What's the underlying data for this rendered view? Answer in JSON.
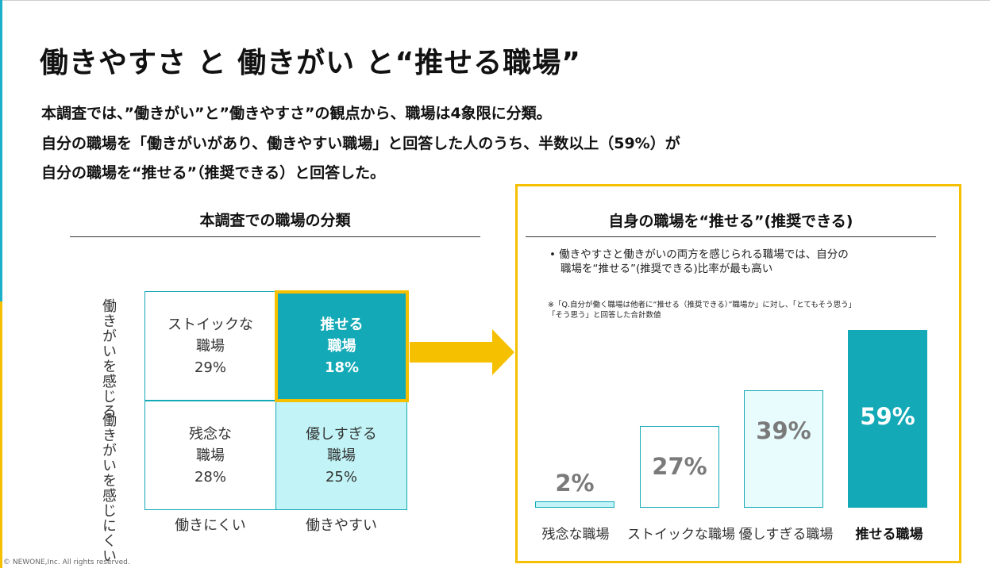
{
  "title": "働きやすさ と 働きがい と“推せる職場”",
  "lead": [
    "本調査では、”働きがい”と”働きやすさ”の観点から、職場は4象限に分類。",
    "自分の職場を「働きがいがあり、働きやすい職場」と回答した人のうち、半数以上（59%）が",
    "自分の職場を“推せる”（推奨できる）と回答した。"
  ],
  "classification": {
    "title": "本調査での職場の分類",
    "quadrants": [
      {
        "name": "ストイックな",
        "name2": "職場",
        "pct": "29%"
      },
      {
        "name": "推せる",
        "name2": "職場",
        "pct": "18%"
      },
      {
        "name": "残念な",
        "name2": "職場",
        "pct": "28%"
      },
      {
        "name": "優しすぎる",
        "name2": "職場",
        "pct": "25%"
      }
    ],
    "y_top": "働きがいを感じる",
    "y_bottom": "働きがいを感じにくい",
    "x_left": "働きにくい",
    "x_right": "働きやすい"
  },
  "panel": {
    "title": "自身の職場を“推せる”(推奨できる)",
    "bullet_1": "•  働きやすさと働きがいの両方を感じられる職場では、自分の",
    "bullet_2": "職場を“推せる”(推奨できる)比率が最も高い",
    "note_1": "※「Q.自分が働く職場は他者に“推せる（推奨できる）”職場か」に対し、「とてもそう思う」",
    "note_2": "「そう思う」と回答した合計数値"
  },
  "chart_data": {
    "type": "bar",
    "title": "自身の職場を“推せる”(推奨できる)",
    "categories": [
      "残念な職場",
      "ストイックな職場",
      "優しすぎる職場",
      "推せる職場"
    ],
    "values": [
      2,
      27,
      39,
      59
    ],
    "value_labels": [
      "2%",
      "27%",
      "39%",
      "59%"
    ],
    "fill_colors": [
      "#c2f4f7",
      "#ffffff",
      "#e8fbfd",
      "#13a9b6"
    ],
    "ylim": [
      0,
      59
    ],
    "grid": false
  },
  "copyright": "© NEWONE,Inc.  All rights reserved.",
  "colors": {
    "teal": "#13a9b6",
    "yellow": "#f5c000",
    "light_teal": "#c2f4f7"
  }
}
